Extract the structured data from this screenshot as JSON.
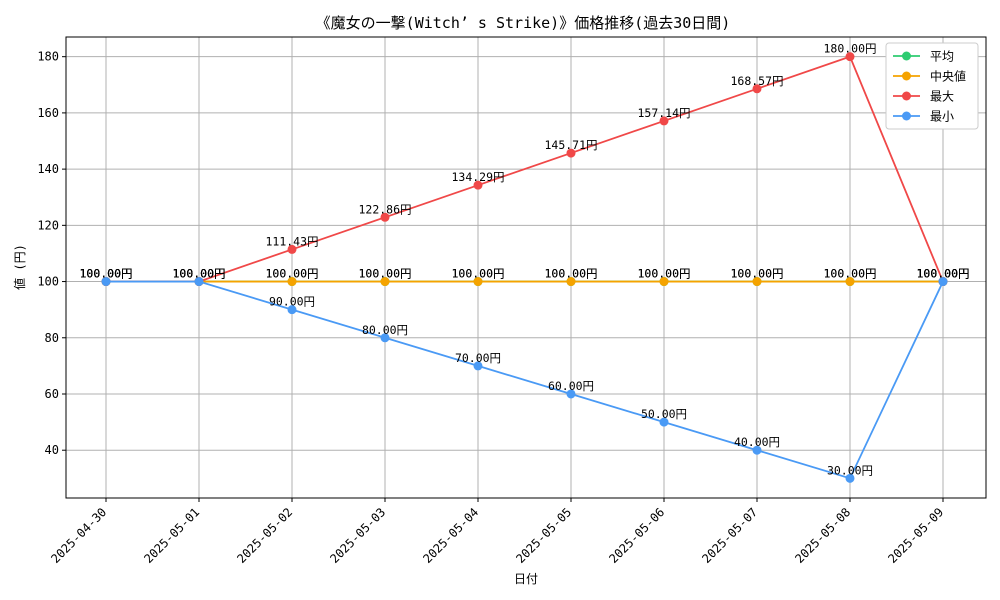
{
  "chart_data": {
    "type": "line",
    "title": "《魔女の一撃(Witch’ s Strike)》価格推移(過去30日間)",
    "xlabel": "日付",
    "ylabel": "値 (円)",
    "categories": [
      "2025-04-30",
      "2025-05-01",
      "2025-05-02",
      "2025-05-03",
      "2025-05-04",
      "2025-05-05",
      "2025-05-06",
      "2025-05-07",
      "2025-05-08",
      "2025-05-09"
    ],
    "ylim": [
      23,
      187
    ],
    "yticks": [
      40,
      60,
      80,
      100,
      120,
      140,
      160,
      180
    ],
    "grid": true,
    "legend_position": "top-right",
    "label_suffix": "円",
    "series": [
      {
        "name": "平均",
        "color": "#2ecc71",
        "values": [
          100,
          100,
          100,
          100,
          100,
          100,
          100,
          100,
          100,
          100
        ]
      },
      {
        "name": "中央値",
        "color": "#f5a300",
        "values": [
          100,
          100,
          100,
          100,
          100,
          100,
          100,
          100,
          100,
          100
        ]
      },
      {
        "name": "最大",
        "color": "#f04848",
        "values": [
          100,
          100,
          111.43,
          122.86,
          134.29,
          145.71,
          157.14,
          168.57,
          180,
          100
        ]
      },
      {
        "name": "最小",
        "color": "#4a9af5",
        "values": [
          100,
          100,
          90,
          80,
          70,
          60,
          50,
          40,
          30,
          100
        ]
      }
    ]
  }
}
